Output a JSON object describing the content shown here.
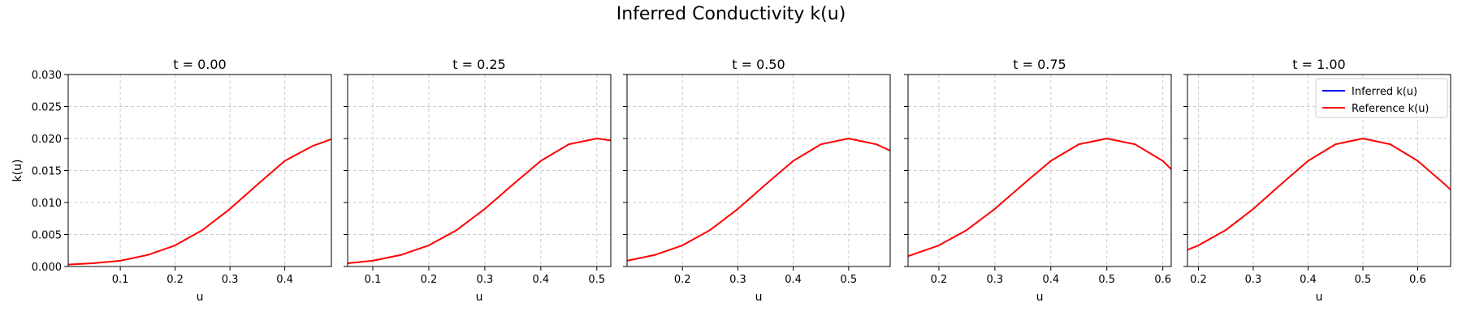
{
  "figure": {
    "suptitle": "Inferred Conductivity k(u)"
  },
  "chart_data": [
    {
      "type": "line",
      "title": "t = 0.00",
      "xlabel": "u",
      "ylabel": "k(u)",
      "xlim": [
        0.005,
        0.485
      ],
      "ylim": [
        0,
        0.03
      ],
      "xticks": [
        0.1,
        0.2,
        0.3,
        0.4
      ],
      "xtick_labels": [
        "0.1",
        "0.2",
        "0.3",
        "0.4"
      ],
      "yticks": [
        0,
        0.005,
        0.01,
        0.015,
        0.02,
        0.025,
        0.03
      ],
      "ytick_labels": [
        "0.000",
        "0.005",
        "0.010",
        "0.015",
        "0.020",
        "0.025",
        "0.030"
      ],
      "grid": true,
      "series": [
        {
          "name": "Reference k(u)",
          "color": "#ff0000",
          "x": [
            0.005,
            0.05,
            0.1,
            0.15,
            0.2,
            0.25,
            0.3,
            0.35,
            0.4,
            0.45,
            0.485
          ],
          "y": [
            0.0003,
            0.0005,
            0.0009,
            0.0018,
            0.0033,
            0.0057,
            0.009,
            0.0128,
            0.0165,
            0.0188,
            0.0199
          ]
        }
      ]
    },
    {
      "type": "line",
      "title": "t = 0.25",
      "xlabel": "u",
      "ylabel": "",
      "xlim": [
        0.055,
        0.525
      ],
      "ylim": [
        0,
        0.03
      ],
      "xticks": [
        0.1,
        0.2,
        0.3,
        0.4,
        0.5
      ],
      "xtick_labels": [
        "0.1",
        "0.2",
        "0.3",
        "0.4",
        "0.5"
      ],
      "yticks": [
        0,
        0.005,
        0.01,
        0.015,
        0.02,
        0.025,
        0.03
      ],
      "ytick_labels": [],
      "grid": true,
      "series": [
        {
          "name": "Reference k(u)",
          "color": "#ff0000",
          "x": [
            0.055,
            0.1,
            0.15,
            0.2,
            0.25,
            0.3,
            0.35,
            0.4,
            0.45,
            0.5,
            0.525
          ],
          "y": [
            0.0005,
            0.0009,
            0.0018,
            0.0033,
            0.0057,
            0.009,
            0.0128,
            0.0165,
            0.0191,
            0.02,
            0.0197
          ]
        }
      ]
    },
    {
      "type": "line",
      "title": "t = 0.50",
      "xlabel": "u",
      "ylabel": "",
      "xlim": [
        0.1,
        0.575
      ],
      "ylim": [
        0,
        0.03
      ],
      "xticks": [
        0.2,
        0.3,
        0.4,
        0.5
      ],
      "xtick_labels": [
        "0.2",
        "0.3",
        "0.4",
        "0.5"
      ],
      "yticks": [
        0,
        0.005,
        0.01,
        0.015,
        0.02,
        0.025,
        0.03
      ],
      "ytick_labels": [],
      "grid": true,
      "series": [
        {
          "name": "Reference k(u)",
          "color": "#ff0000",
          "x": [
            0.1,
            0.15,
            0.2,
            0.25,
            0.3,
            0.35,
            0.4,
            0.45,
            0.5,
            0.55,
            0.575
          ],
          "y": [
            0.0009,
            0.0018,
            0.0033,
            0.0057,
            0.009,
            0.0128,
            0.0165,
            0.0191,
            0.02,
            0.0191,
            0.0181
          ]
        }
      ]
    },
    {
      "type": "line",
      "title": "t = 0.75",
      "xlabel": "u",
      "ylabel": "",
      "xlim": [
        0.145,
        0.615
      ],
      "ylim": [
        0,
        0.03
      ],
      "xticks": [
        0.2,
        0.3,
        0.4,
        0.5,
        0.6
      ],
      "xtick_labels": [
        "0.2",
        "0.3",
        "0.4",
        "0.5",
        "0.6"
      ],
      "yticks": [
        0,
        0.005,
        0.01,
        0.015,
        0.02,
        0.025,
        0.03
      ],
      "ytick_labels": [],
      "grid": true,
      "series": [
        {
          "name": "Reference k(u)",
          "color": "#ff0000",
          "x": [
            0.145,
            0.2,
            0.25,
            0.3,
            0.35,
            0.4,
            0.45,
            0.5,
            0.55,
            0.6,
            0.615
          ],
          "y": [
            0.0016,
            0.0033,
            0.0057,
            0.009,
            0.0128,
            0.0165,
            0.0191,
            0.02,
            0.0191,
            0.0165,
            0.0152
          ]
        }
      ]
    },
    {
      "type": "line",
      "title": "t = 1.00",
      "xlabel": "u",
      "ylabel": "",
      "xlim": [
        0.18,
        0.66
      ],
      "ylim": [
        0,
        0.03
      ],
      "xticks": [
        0.2,
        0.3,
        0.4,
        0.5,
        0.6
      ],
      "xtick_labels": [
        "0.2",
        "0.3",
        "0.4",
        "0.5",
        "0.6"
      ],
      "yticks": [
        0,
        0.005,
        0.01,
        0.015,
        0.02,
        0.025,
        0.03
      ],
      "ytick_labels": [],
      "grid": true,
      "legend": {
        "placement": "top-right",
        "entries": [
          {
            "label": "Inferred k(u)",
            "color": "#0000ff"
          },
          {
            "label": "Reference k(u)",
            "color": "#ff0000"
          }
        ]
      },
      "series": [
        {
          "name": "Reference k(u)",
          "color": "#ff0000",
          "x": [
            0.18,
            0.2,
            0.25,
            0.3,
            0.35,
            0.4,
            0.45,
            0.5,
            0.55,
            0.6,
            0.65,
            0.66
          ],
          "y": [
            0.0026,
            0.0033,
            0.0057,
            0.009,
            0.0128,
            0.0165,
            0.0191,
            0.02,
            0.0191,
            0.0165,
            0.0128,
            0.012
          ]
        }
      ]
    }
  ],
  "colors": {
    "grid": "#cccccc",
    "axis": "#000000",
    "inferred": "#0000ff",
    "reference": "#ff0000"
  }
}
